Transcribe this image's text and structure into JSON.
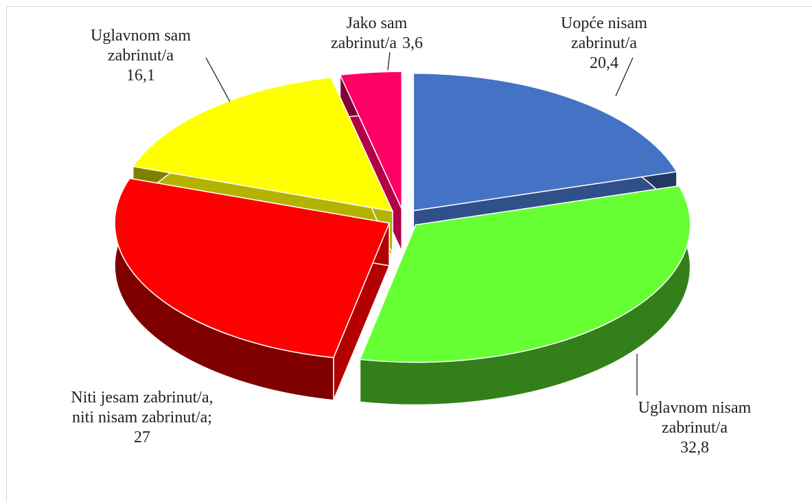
{
  "chart_data": {
    "type": "pie3d",
    "categories": [
      "Uopće nisam zabrinut/a",
      "Uglavnom nisam zabrinut/a",
      "Niti jesam zabrinut/a, niti nisam zabrinut/a;",
      "Uglavnom sam zabrinut/a",
      "Jako sam zabrinut/a"
    ],
    "values": [
      20.4,
      32.8,
      27,
      16.1,
      3.6
    ],
    "value_labels": [
      "20,4",
      "32,8",
      "27",
      "16,1",
      "3,6"
    ],
    "colors": [
      "#4472c4",
      "#66ff33",
      "#ff0000",
      "#ffff00",
      "#ff0066"
    ]
  }
}
